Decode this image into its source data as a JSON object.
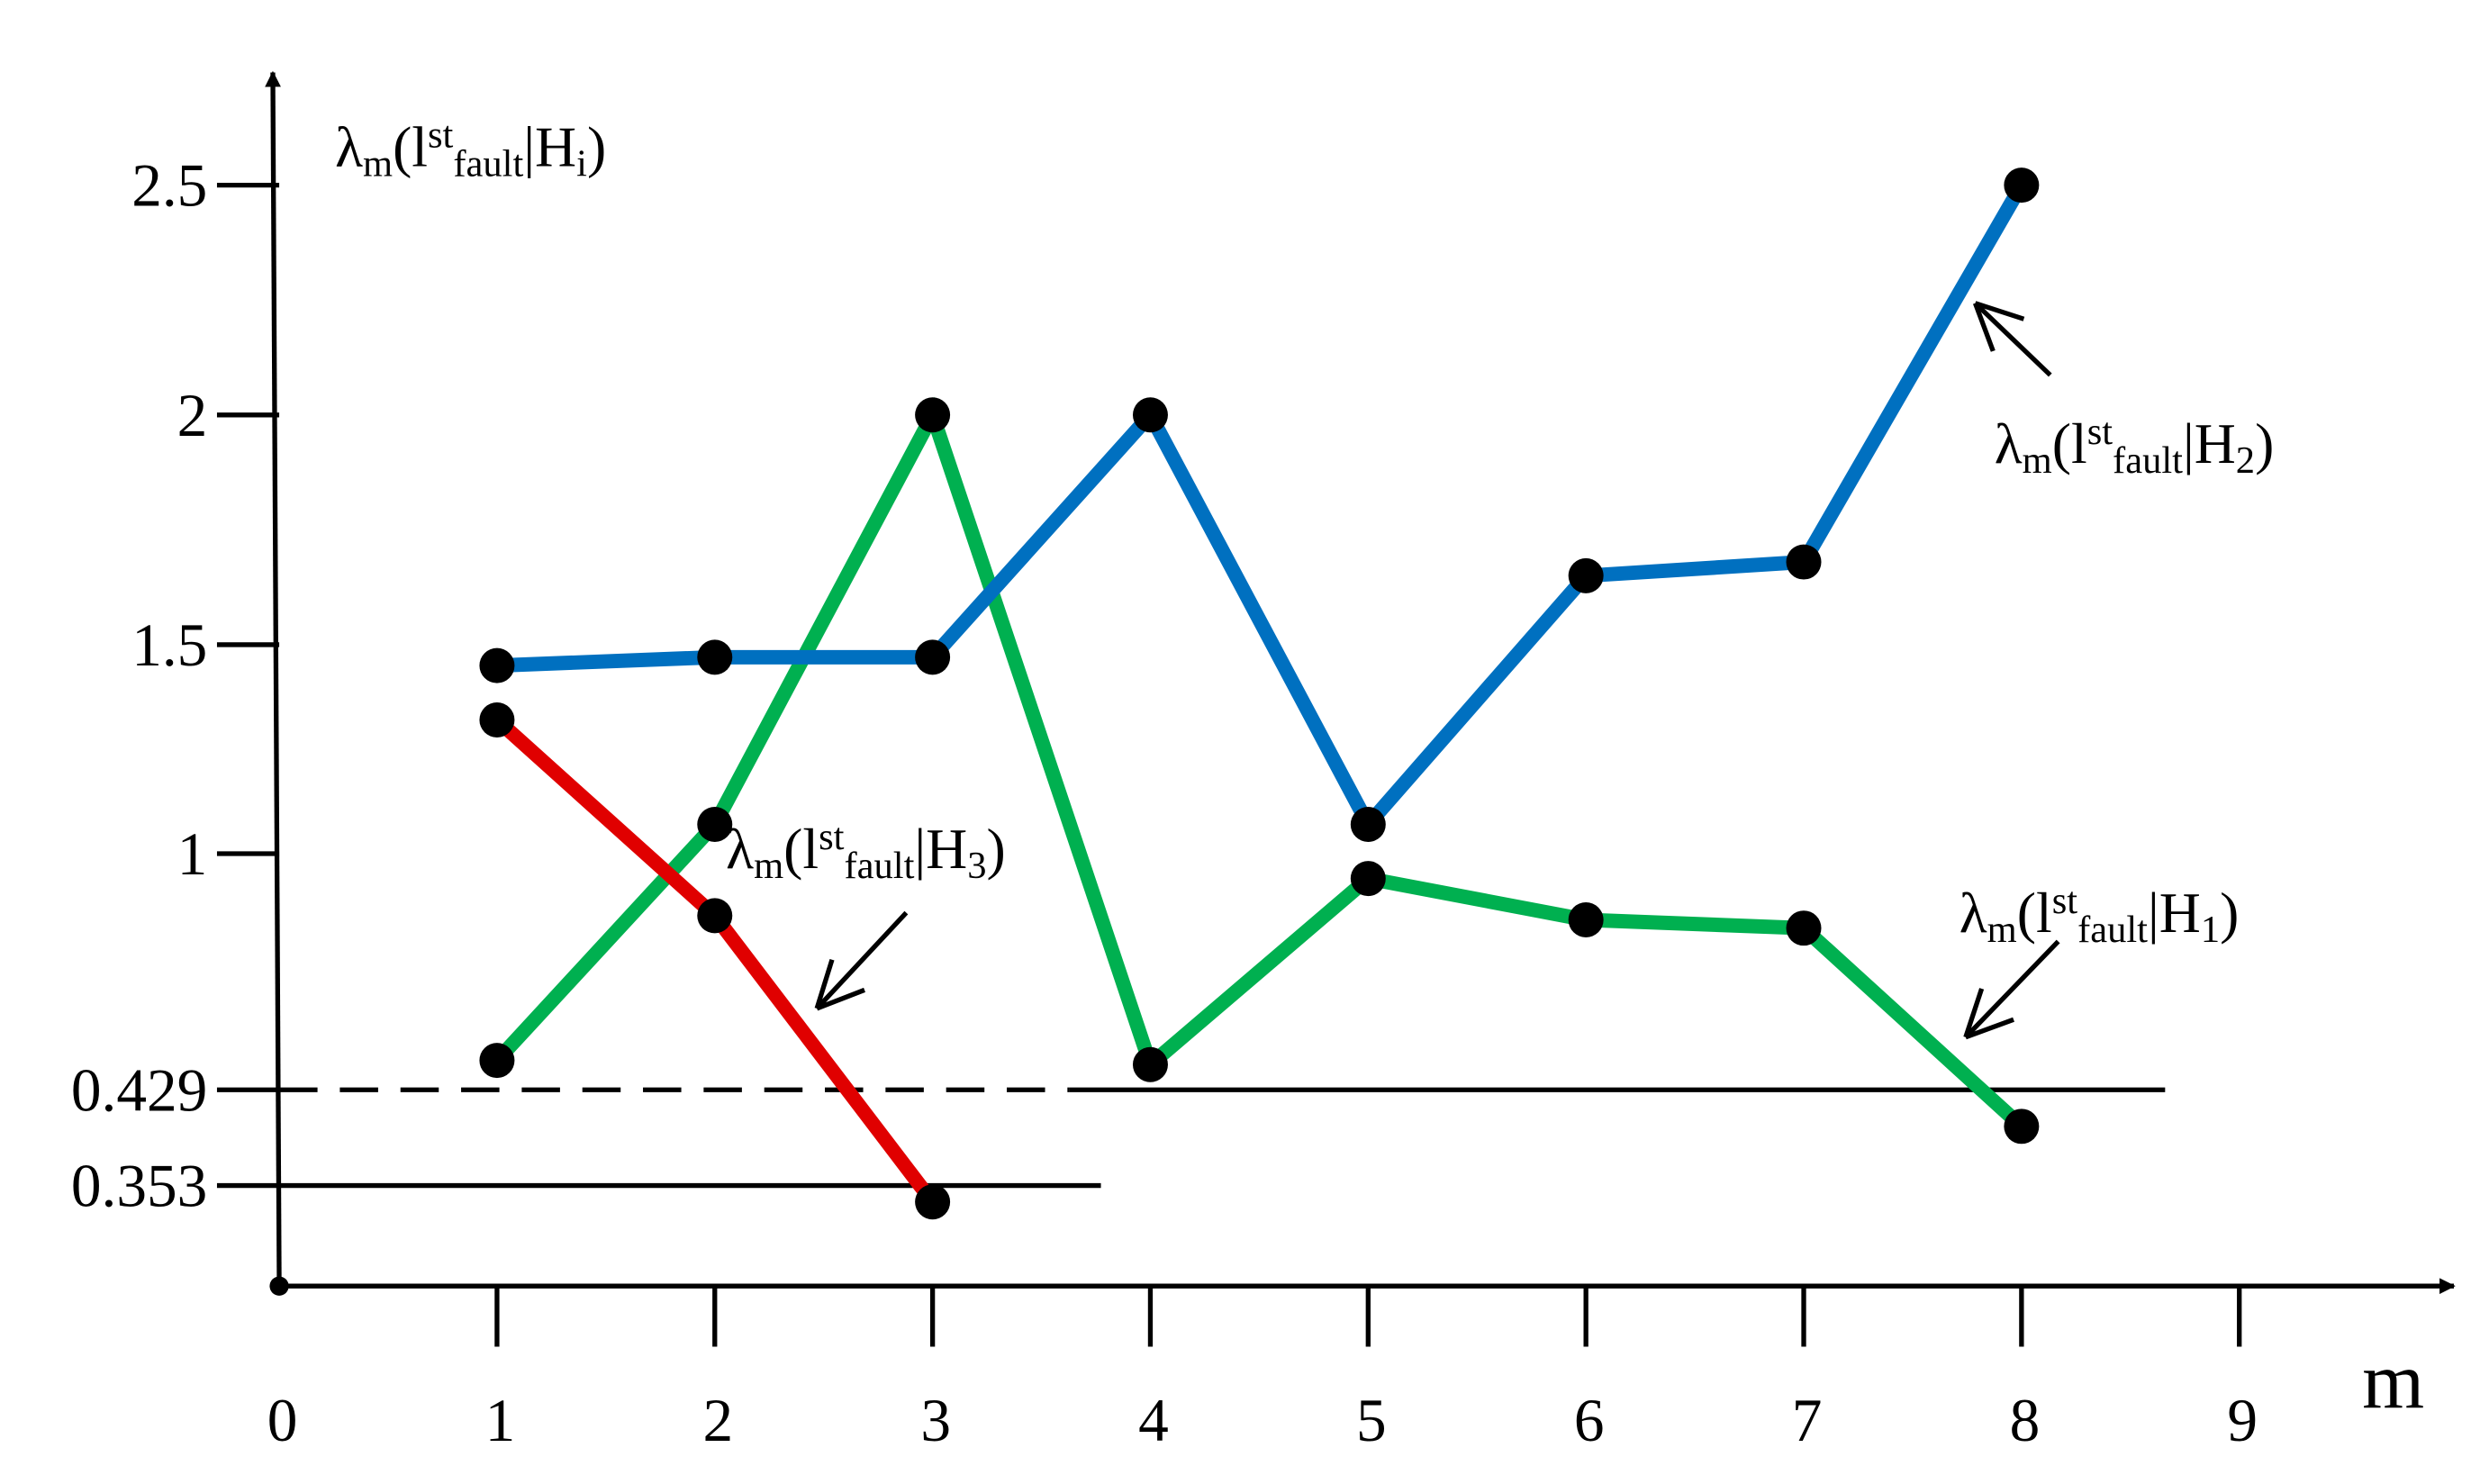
{
  "chart_data": {
    "type": "line",
    "y_label": [
      "λ",
      "m",
      "(l",
      "st",
      "fault",
      "|H",
      "i",
      ")"
    ],
    "x_label": "m",
    "x": [
      1,
      2,
      3,
      4,
      5,
      6,
      7,
      8
    ],
    "series": [
      {
        "name": [
          "λ",
          "m",
          "(l",
          "st",
          "fault",
          "|H",
          "1",
          ")"
        ],
        "color": "#00b050",
        "values": [
          0.5,
          1.07,
          2,
          0.49,
          0.94,
          0.84,
          0.82,
          0.4
        ]
      },
      {
        "name": [
          "λ",
          "m",
          "(l",
          "st",
          "fault",
          "|H",
          "2",
          ")"
        ],
        "color": "#0070c0",
        "values": [
          1.45,
          1.47,
          1.47,
          2,
          1.07,
          1.65,
          1.68,
          2.5
        ]
      },
      {
        "name": [
          "λ",
          "m",
          "(l",
          "st",
          "fault",
          "|H",
          "3",
          ")"
        ],
        "color": "#e00000",
        "values": [
          1.32,
          0.85,
          0.34,
          null,
          null,
          null,
          null,
          null
        ]
      }
    ],
    "xlim": [
      0,
      10
    ],
    "xticks": [
      0,
      1,
      2,
      3,
      4,
      5,
      6,
      7,
      8,
      9
    ],
    "ylim": [
      0.273,
      2.78
    ],
    "yticks": [
      0.353,
      0.429,
      1,
      1.5,
      2,
      2.5
    ],
    "grid": false
  }
}
